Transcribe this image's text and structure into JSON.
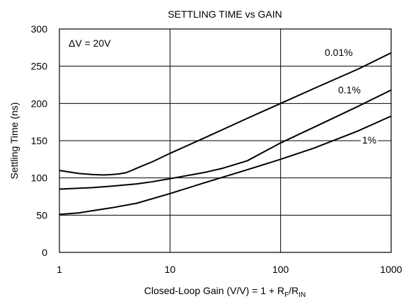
{
  "chart_data": {
    "type": "line",
    "title": "SETTLING TIME vs GAIN",
    "xlabel": {
      "prefix": "Closed-Loop Gain (V/V) = 1 + R",
      "sub1": "F",
      "mid": "/R",
      "sub2": "IN"
    },
    "ylabel": "Settling Time (ns)",
    "x_scale": "log",
    "xlim": [
      1,
      1000
    ],
    "ylim": [
      0,
      300
    ],
    "x_ticks": [
      1,
      10,
      100,
      1000
    ],
    "x_tick_labels": [
      "1",
      "10",
      "100",
      "1000"
    ],
    "y_ticks": [
      0,
      50,
      100,
      150,
      200,
      250,
      300
    ],
    "y_tick_labels": [
      "0",
      "50",
      "100",
      "150",
      "200",
      "250",
      "300"
    ],
    "grid": true,
    "annotation": "ΔV = 20V",
    "series": [
      {
        "name": "0.01%",
        "x": [
          1,
          1.5,
          2,
          2.5,
          3,
          3.5,
          4,
          4.5,
          5,
          7,
          10,
          20,
          50,
          100,
          200,
          500,
          1000
        ],
        "y": [
          110,
          106,
          104.5,
          104,
          104.5,
          105.5,
          107,
          110,
          113,
          122,
          133,
          153,
          180,
          200,
          220,
          246,
          268
        ]
      },
      {
        "name": "0.1%",
        "x": [
          1,
          2,
          3,
          5,
          7,
          10,
          20,
          30,
          50,
          100,
          200,
          500,
          1000
        ],
        "y": [
          85,
          87,
          89,
          92,
          95,
          99,
          107,
          113,
          123,
          147,
          168,
          196,
          218
        ]
      },
      {
        "name": "1%",
        "x": [
          1,
          1.5,
          2,
          3,
          5,
          10,
          20,
          50,
          100,
          200,
          500,
          1000
        ],
        "y": [
          51,
          53,
          56,
          60,
          66,
          79,
          93,
          111,
          125,
          140,
          163,
          183
        ]
      }
    ]
  }
}
